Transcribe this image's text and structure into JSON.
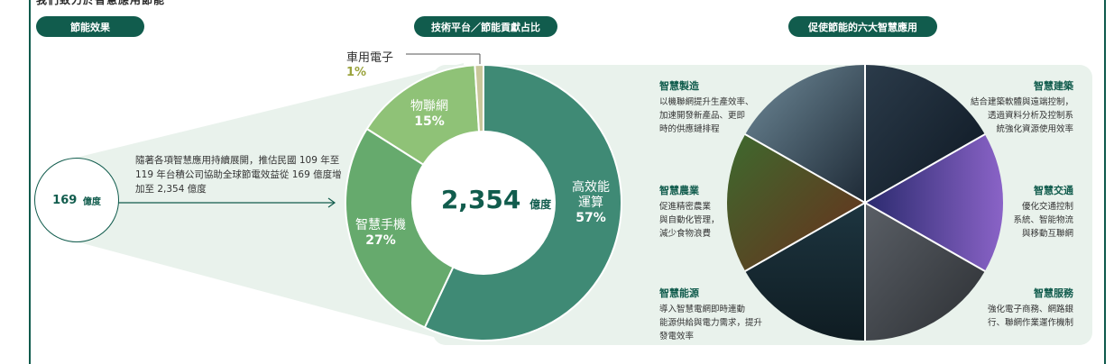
{
  "top_cut_text": "我們致力於智慧應用節能",
  "pills": {
    "effect": "節能效果",
    "share": "技術平台／節能貢獻占比",
    "apps": "促使節能的六大智慧應用"
  },
  "start": {
    "value": "169",
    "unit": "億度",
    "description": "隨著各項智慧應用持續展開，推估民國 109 年至 119 年台積公司協助全球節電效益從 169 億度增加至 2,354 億度"
  },
  "center": {
    "value": "2,354",
    "unit": "億度"
  },
  "chart_data": {
    "type": "pie",
    "title": "技術平台／節能貢獻占比",
    "total_label": "2,354 億度",
    "categories": [
      "高效能運算",
      "智慧手機",
      "物聯網",
      "車用電子"
    ],
    "values": [
      57,
      27,
      15,
      1
    ],
    "value_labels": [
      "57%",
      "27%",
      "15%",
      "1%"
    ],
    "colors": [
      "#3f8a75",
      "#66aa6d",
      "#8fc277",
      "#c9c79a"
    ]
  },
  "segments": {
    "hpc": {
      "name_line1": "高效能",
      "name_line2": "運算",
      "pct": "57%"
    },
    "phone": {
      "name": "智慧手機",
      "pct": "27%"
    },
    "iot": {
      "name": "物聯網",
      "pct": "15%"
    },
    "auto": {
      "name": "車用電子",
      "pct": "1%"
    }
  },
  "apps": {
    "manufacturing": {
      "title": "智慧製造",
      "lines": [
        "以機聯網提升生產效率、",
        "加速開發新產品、更即",
        "時的供應鏈排程"
      ]
    },
    "agriculture": {
      "title": "智慧農業",
      "lines": [
        "促進精密農業",
        "與自動化管理，",
        "減少食物浪費"
      ]
    },
    "energy": {
      "title": "智慧能源",
      "lines": [
        "導入智慧電網即時連動",
        "能源供給與電力需求，提升",
        "發電效率"
      ]
    },
    "building": {
      "title": "智慧建築",
      "lines": [
        "結合建築軟體與遠端控制，",
        "透過資料分析及控制系",
        "統強化資源使用效率"
      ]
    },
    "transport": {
      "title": "智慧交通",
      "lines": [
        "優化交通控制",
        "系統、智能物流",
        "與移動互聯網"
      ]
    },
    "services": {
      "title": "智慧服務",
      "lines": [
        "強化電子商務、網路銀",
        "行、聯網作業運作機制"
      ]
    }
  }
}
